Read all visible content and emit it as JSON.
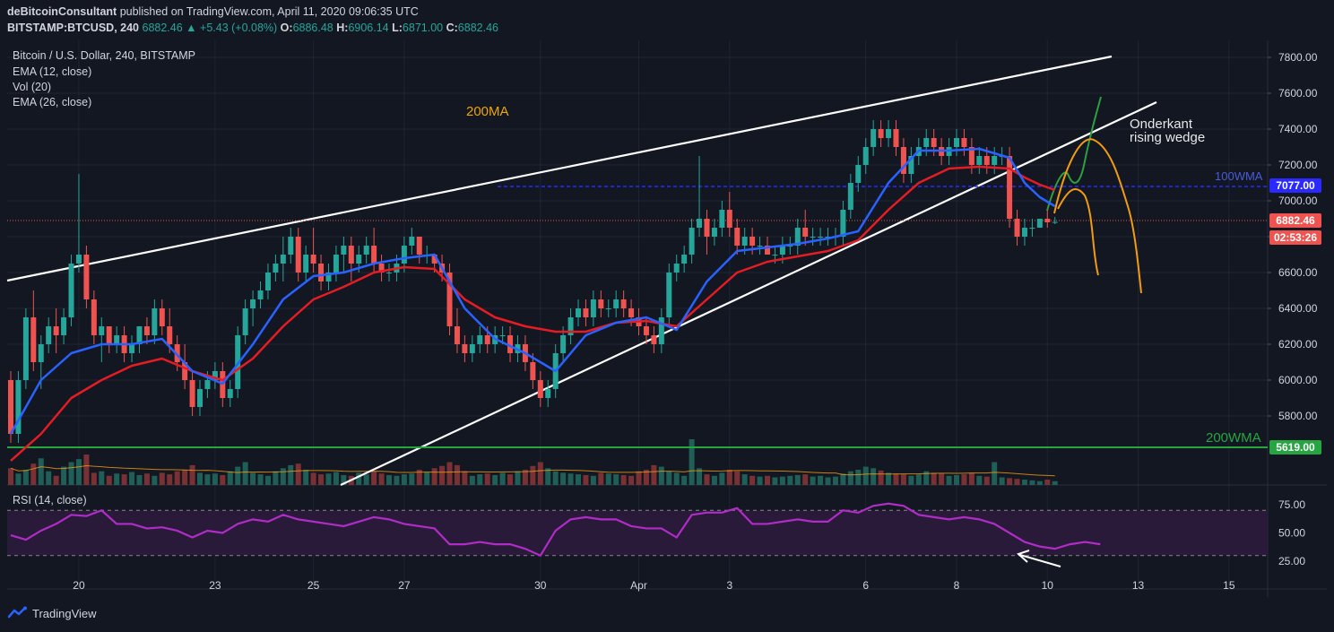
{
  "header": {
    "publisher": "deBitcoinConsultant",
    "published_text": "published on TradingView.com, April 11, 2020 09:06:35 UTC",
    "symbol": "BITSTAMP:BTCUSD, 240",
    "last": "6882.46",
    "change": "▲ +5.43 (+0.08%)",
    "o_label": "O:",
    "o": "6886.48",
    "h_label": "H:",
    "h": "6906.14",
    "l_label": "L:",
    "l": "6871.00",
    "c_label": "C:",
    "c": "6882.46"
  },
  "legend": {
    "title": "Bitcoin / U.S. Dollar, 240, BITSTAMP",
    "ema12": "EMA (12, close)",
    "vol": "Vol (20)",
    "ema26": "EMA (26, close)",
    "rsi": "RSI (14, close)"
  },
  "annotations": {
    "ma200": "200MA",
    "wedge_line1": "Onderkant",
    "wedge_line2": "rising wedge",
    "wma100": "100WMA",
    "wma200": "200WMA"
  },
  "price_tags": {
    "wma100": "7077.00",
    "last": "6882.46",
    "countdown": "02:53:26",
    "wma200": "5619.00"
  },
  "footer": {
    "brand": "TradingView"
  },
  "colors": {
    "background": "#131722",
    "up": "#26a69a",
    "down": "#ef5350",
    "ema12": "#2962ff",
    "ema26": "#e51c23",
    "wma100": "#2a2aff",
    "wma200": "#26a641",
    "rsi": "#b02cc6",
    "orange": "#f39c12",
    "green_path": "#2e9e3f"
  },
  "chart_data": {
    "type": "candlestick",
    "y_ticks": [
      7800,
      7600,
      7400,
      7200,
      7000,
      6800,
      6600,
      6400,
      6200,
      6000,
      5800
    ],
    "y_tick_labels": [
      "7800.00",
      "7600.00",
      "7400.00",
      "7200.00",
      "7000.00",
      "6800.00",
      "6600.00",
      "6400.00",
      "6200.00",
      "6000.00",
      "5800.00"
    ],
    "ylim": [
      5720,
      7860
    ],
    "x_labels": [
      "20",
      "23",
      "25",
      "27",
      "30",
      "Apr",
      "3",
      "6",
      "8",
      "10",
      "13",
      "15"
    ],
    "x_label_bar_index": [
      9,
      27,
      40,
      52,
      70,
      83,
      95,
      113,
      125,
      137,
      149,
      161
    ],
    "total_slots": 170,
    "candles": [
      [
        6000,
        6050,
        5650,
        5700
      ],
      [
        5700,
        6050,
        5650,
        6000
      ],
      [
        6000,
        6400,
        5950,
        6350
      ],
      [
        6350,
        6500,
        6050,
        6100
      ],
      [
        6100,
        6250,
        5950,
        6200
      ],
      [
        6200,
        6350,
        6150,
        6300
      ],
      [
        6300,
        6400,
        6150,
        6250
      ],
      [
        6250,
        6400,
        6200,
        6350
      ],
      [
        6350,
        6700,
        6300,
        6650
      ],
      [
        6650,
        7150,
        6600,
        6700
      ],
      [
        6700,
        6750,
        6400,
        6450
      ],
      [
        6450,
        6500,
        6200,
        6250
      ],
      [
        6250,
        6350,
        6100,
        6300
      ],
      [
        6300,
        6300,
        6150,
        6200
      ],
      [
        6200,
        6300,
        6150,
        6250
      ],
      [
        6250,
        6300,
        6100,
        6150
      ],
      [
        6150,
        6250,
        6100,
        6200
      ],
      [
        6200,
        6300,
        6150,
        6300
      ],
      [
        6300,
        6350,
        6200,
        6250
      ],
      [
        6250,
        6450,
        6200,
        6400
      ],
      [
        6400,
        6450,
        6250,
        6300
      ],
      [
        6300,
        6400,
        6150,
        6200
      ],
      [
        6200,
        6250,
        6050,
        6100
      ],
      [
        6100,
        6200,
        5950,
        6000
      ],
      [
        6000,
        6050,
        5800,
        5850
      ],
      [
        5850,
        6000,
        5800,
        5950
      ],
      [
        5950,
        6050,
        5900,
        6000
      ],
      [
        6000,
        6100,
        5950,
        6050
      ],
      [
        6050,
        6100,
        5850,
        5900
      ],
      [
        5900,
        6000,
        5850,
        5950
      ],
      [
        5950,
        6300,
        5900,
        6250
      ],
      [
        6250,
        6450,
        6200,
        6400
      ],
      [
        6400,
        6500,
        6300,
        6450
      ],
      [
        6450,
        6550,
        6400,
        6500
      ],
      [
        6500,
        6650,
        6450,
        6600
      ],
      [
        6600,
        6700,
        6550,
        6650
      ],
      [
        6650,
        6800,
        6550,
        6700
      ],
      [
        6700,
        6850,
        6650,
        6800
      ],
      [
        6800,
        6850,
        6550,
        6600
      ],
      [
        6600,
        6750,
        6550,
        6700
      ],
      [
        6700,
        6850,
        6600,
        6650
      ],
      [
        6650,
        6700,
        6500,
        6550
      ],
      [
        6550,
        6650,
        6500,
        6600
      ],
      [
        6600,
        6750,
        6550,
        6700
      ],
      [
        6700,
        6800,
        6600,
        6750
      ],
      [
        6750,
        6800,
        6550,
        6650
      ],
      [
        6650,
        6750,
        6600,
        6700
      ],
      [
        6700,
        6800,
        6650,
        6750
      ],
      [
        6750,
        6850,
        6600,
        6650
      ],
      [
        6650,
        6700,
        6550,
        6600
      ],
      [
        6600,
        6650,
        6550,
        6600
      ],
      [
        6600,
        6700,
        6550,
        6650
      ],
      [
        6650,
        6800,
        6600,
        6750
      ],
      [
        6750,
        6850,
        6700,
        6800
      ],
      [
        6800,
        6800,
        6650,
        6700
      ],
      [
        6700,
        6750,
        6650,
        6700
      ],
      [
        6700,
        6700,
        6600,
        6650
      ],
      [
        6650,
        6700,
        6550,
        6600
      ],
      [
        6600,
        6650,
        6250,
        6300
      ],
      [
        6300,
        6400,
        6150,
        6200
      ],
      [
        6200,
        6250,
        6100,
        6150
      ],
      [
        6150,
        6250,
        6100,
        6200
      ],
      [
        6200,
        6300,
        6150,
        6250
      ],
      [
        6250,
        6300,
        6150,
        6200
      ],
      [
        6200,
        6300,
        6150,
        6250
      ],
      [
        6250,
        6300,
        6200,
        6250
      ],
      [
        6250,
        6300,
        6100,
        6150
      ],
      [
        6150,
        6250,
        6100,
        6200
      ],
      [
        6200,
        6250,
        6050,
        6100
      ],
      [
        6100,
        6150,
        5950,
        6000
      ],
      [
        6000,
        6050,
        5850,
        5900
      ],
      [
        5900,
        6000,
        5850,
        5950
      ],
      [
        5950,
        6200,
        5900,
        6150
      ],
      [
        6150,
        6300,
        6100,
        6250
      ],
      [
        6250,
        6400,
        6200,
        6350
      ],
      [
        6350,
        6450,
        6300,
        6400
      ],
      [
        6400,
        6450,
        6300,
        6350
      ],
      [
        6350,
        6500,
        6300,
        6450
      ],
      [
        6450,
        6500,
        6350,
        6400
      ],
      [
        6400,
        6450,
        6350,
        6400
      ],
      [
        6400,
        6500,
        6350,
        6450
      ],
      [
        6450,
        6500,
        6350,
        6400
      ],
      [
        6400,
        6450,
        6300,
        6350
      ],
      [
        6350,
        6400,
        6250,
        6300
      ],
      [
        6300,
        6350,
        6200,
        6250
      ],
      [
        6250,
        6300,
        6150,
        6200
      ],
      [
        6200,
        6400,
        6150,
        6350
      ],
      [
        6350,
        6650,
        6300,
        6600
      ],
      [
        6600,
        6700,
        6550,
        6650
      ],
      [
        6650,
        6750,
        6600,
        6700
      ],
      [
        6700,
        6900,
        6650,
        6850
      ],
      [
        6850,
        7250,
        6800,
        6900
      ],
      [
        6900,
        6950,
        6700,
        6800
      ],
      [
        6800,
        6900,
        6750,
        6850
      ],
      [
        6850,
        7000,
        6800,
        6950
      ],
      [
        6950,
        7050,
        6800,
        6850
      ],
      [
        6850,
        6900,
        6700,
        6750
      ],
      [
        6750,
        6850,
        6700,
        6800
      ],
      [
        6800,
        6850,
        6700,
        6750
      ],
      [
        6750,
        6800,
        6700,
        6750
      ],
      [
        6750,
        6800,
        6700,
        6700
      ],
      [
        6700,
        6750,
        6650,
        6700
      ],
      [
        6700,
        6800,
        6650,
        6750
      ],
      [
        6750,
        6800,
        6700,
        6750
      ],
      [
        6750,
        6900,
        6700,
        6850
      ],
      [
        6850,
        6950,
        6750,
        6800
      ],
      [
        6800,
        6850,
        6750,
        6800
      ],
      [
        6800,
        6850,
        6750,
        6800
      ],
      [
        6800,
        6850,
        6750,
        6800
      ],
      [
        6800,
        6850,
        6750,
        6800
      ],
      [
        6800,
        7000,
        6750,
        6950
      ],
      [
        6950,
        7150,
        6900,
        7100
      ],
      [
        7100,
        7250,
        7050,
        7200
      ],
      [
        7200,
        7350,
        7150,
        7300
      ],
      [
        7300,
        7450,
        7250,
        7400
      ],
      [
        7400,
        7450,
        7300,
        7350
      ],
      [
        7350,
        7450,
        7300,
        7400
      ],
      [
        7400,
        7450,
        7250,
        7300
      ],
      [
        7300,
        7350,
        7100,
        7150
      ],
      [
        7150,
        7300,
        7100,
        7250
      ],
      [
        7250,
        7350,
        7200,
        7300
      ],
      [
        7300,
        7400,
        7250,
        7350
      ],
      [
        7350,
        7400,
        7250,
        7300
      ],
      [
        7300,
        7350,
        7200,
        7250
      ],
      [
        7250,
        7350,
        7200,
        7300
      ],
      [
        7300,
        7400,
        7250,
        7350
      ],
      [
        7350,
        7400,
        7250,
        7300
      ],
      [
        7300,
        7350,
        7150,
        7200
      ],
      [
        7200,
        7300,
        7150,
        7250
      ],
      [
        7250,
        7300,
        7150,
        7200
      ],
      [
        7200,
        7300,
        7150,
        7250
      ],
      [
        7250,
        7300,
        7200,
        7250
      ],
      [
        7250,
        7300,
        6850,
        6900
      ],
      [
        6900,
        6950,
        6750,
        6800
      ],
      [
        6800,
        6900,
        6750,
        6850
      ],
      [
        6850,
        6900,
        6800,
        6850
      ],
      [
        6850,
        6900,
        6850,
        6900
      ],
      [
        6900,
        6950,
        6850,
        6880
      ],
      [
        6880,
        6910,
        6870,
        6882
      ]
    ],
    "ema12": [
      [
        0,
        5700
      ],
      [
        4,
        6000
      ],
      [
        8,
        6150
      ],
      [
        12,
        6200
      ],
      [
        16,
        6200
      ],
      [
        20,
        6230
      ],
      [
        24,
        6050
      ],
      [
        28,
        5980
      ],
      [
        32,
        6200
      ],
      [
        36,
        6450
      ],
      [
        40,
        6580
      ],
      [
        44,
        6600
      ],
      [
        48,
        6650
      ],
      [
        52,
        6680
      ],
      [
        56,
        6700
      ],
      [
        60,
        6400
      ],
      [
        64,
        6230
      ],
      [
        68,
        6150
      ],
      [
        72,
        6050
      ],
      [
        76,
        6250
      ],
      [
        80,
        6320
      ],
      [
        84,
        6350
      ],
      [
        88,
        6280
      ],
      [
        92,
        6550
      ],
      [
        96,
        6720
      ],
      [
        100,
        6740
      ],
      [
        104,
        6760
      ],
      [
        108,
        6790
      ],
      [
        112,
        6830
      ],
      [
        116,
        7100
      ],
      [
        120,
        7280
      ],
      [
        124,
        7280
      ],
      [
        128,
        7290
      ],
      [
        132,
        7240
      ],
      [
        134,
        7100
      ],
      [
        136,
        7020
      ],
      [
        138,
        6970
      ]
    ],
    "ema26": [
      [
        0,
        5550
      ],
      [
        4,
        5700
      ],
      [
        8,
        5900
      ],
      [
        12,
        6000
      ],
      [
        16,
        6080
      ],
      [
        20,
        6120
      ],
      [
        24,
        6050
      ],
      [
        28,
        6000
      ],
      [
        32,
        6120
      ],
      [
        36,
        6300
      ],
      [
        40,
        6450
      ],
      [
        44,
        6520
      ],
      [
        48,
        6600
      ],
      [
        52,
        6630
      ],
      [
        56,
        6620
      ],
      [
        60,
        6450
      ],
      [
        64,
        6350
      ],
      [
        68,
        6300
      ],
      [
        72,
        6270
      ],
      [
        76,
        6270
      ],
      [
        80,
        6320
      ],
      [
        84,
        6330
      ],
      [
        88,
        6300
      ],
      [
        92,
        6450
      ],
      [
        96,
        6600
      ],
      [
        100,
        6660
      ],
      [
        104,
        6690
      ],
      [
        108,
        6720
      ],
      [
        112,
        6780
      ],
      [
        116,
        6950
      ],
      [
        120,
        7100
      ],
      [
        124,
        7180
      ],
      [
        128,
        7190
      ],
      [
        132,
        7180
      ],
      [
        134,
        7130
      ],
      [
        136,
        7090
      ],
      [
        138,
        7060
      ]
    ],
    "volume": [
      22,
      15,
      20,
      28,
      35,
      18,
      12,
      24,
      30,
      34,
      40,
      16,
      18,
      12,
      15,
      14,
      17,
      13,
      15,
      12,
      16,
      14,
      18,
      20,
      26,
      16,
      14,
      15,
      13,
      18,
      24,
      30,
      16,
      14,
      12,
      18,
      22,
      26,
      28,
      20,
      16,
      14,
      15,
      17,
      13,
      12,
      16,
      14,
      18,
      15,
      13,
      12,
      14,
      15,
      20,
      17,
      22,
      25,
      30,
      26,
      18,
      12,
      14,
      15,
      13,
      16,
      14,
      18,
      20,
      25,
      30,
      22,
      18,
      16,
      15,
      14,
      13,
      12,
      16,
      15,
      14,
      13,
      12,
      18,
      20,
      26,
      24,
      18,
      16,
      12,
      60,
      22,
      14,
      12,
      16,
      20,
      18,
      14,
      12,
      11,
      12,
      10,
      11,
      12,
      13,
      14,
      11,
      12,
      10,
      11,
      15,
      18,
      20,
      24,
      22,
      19,
      16,
      15,
      14,
      12,
      14,
      18,
      16,
      15,
      12,
      13,
      14,
      16,
      12,
      11,
      30,
      10,
      9,
      8,
      7,
      6,
      5,
      7,
      5
    ],
    "rsi": [
      [
        0,
        48
      ],
      [
        2,
        44
      ],
      [
        4,
        52
      ],
      [
        6,
        58
      ],
      [
        8,
        66
      ],
      [
        10,
        65
      ],
      [
        12,
        70
      ],
      [
        14,
        58
      ],
      [
        16,
        58
      ],
      [
        18,
        54
      ],
      [
        20,
        55
      ],
      [
        22,
        52
      ],
      [
        24,
        46
      ],
      [
        26,
        52
      ],
      [
        28,
        50
      ],
      [
        30,
        58
      ],
      [
        32,
        62
      ],
      [
        34,
        60
      ],
      [
        36,
        66
      ],
      [
        38,
        62
      ],
      [
        40,
        60
      ],
      [
        42,
        58
      ],
      [
        44,
        56
      ],
      [
        46,
        60
      ],
      [
        48,
        64
      ],
      [
        50,
        62
      ],
      [
        52,
        58
      ],
      [
        54,
        56
      ],
      [
        56,
        54
      ],
      [
        58,
        40
      ],
      [
        60,
        40
      ],
      [
        62,
        42
      ],
      [
        64,
        40
      ],
      [
        66,
        40
      ],
      [
        68,
        36
      ],
      [
        70,
        30
      ],
      [
        72,
        52
      ],
      [
        74,
        62
      ],
      [
        76,
        64
      ],
      [
        78,
        62
      ],
      [
        80,
        62
      ],
      [
        82,
        56
      ],
      [
        84,
        54
      ],
      [
        86,
        54
      ],
      [
        88,
        46
      ],
      [
        90,
        66
      ],
      [
        92,
        68
      ],
      [
        94,
        68
      ],
      [
        96,
        72
      ],
      [
        98,
        58
      ],
      [
        100,
        58
      ],
      [
        102,
        60
      ],
      [
        104,
        62
      ],
      [
        106,
        60
      ],
      [
        108,
        60
      ],
      [
        110,
        70
      ],
      [
        112,
        68
      ],
      [
        114,
        74
      ],
      [
        116,
        76
      ],
      [
        118,
        74
      ],
      [
        120,
        66
      ],
      [
        122,
        64
      ],
      [
        124,
        62
      ],
      [
        126,
        64
      ],
      [
        128,
        62
      ],
      [
        130,
        58
      ],
      [
        132,
        50
      ],
      [
        134,
        42
      ],
      [
        136,
        38
      ],
      [
        138,
        36
      ],
      [
        140,
        40
      ],
      [
        142,
        42
      ],
      [
        144,
        40
      ]
    ],
    "rsi_ticks": [
      75,
      50,
      25
    ],
    "rsi_band": [
      70,
      30
    ]
  }
}
